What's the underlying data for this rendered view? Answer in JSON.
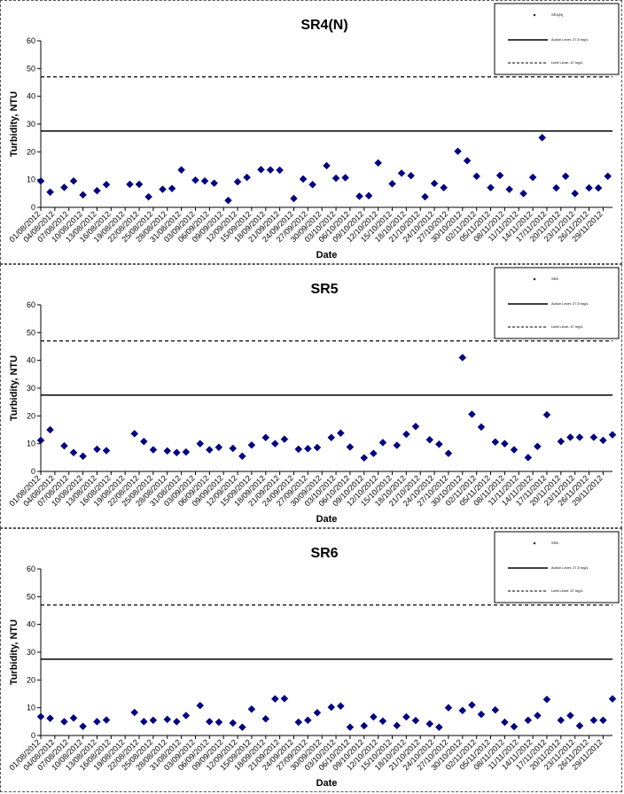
{
  "colors": {
    "marker": "#000080",
    "line": "#000000",
    "border": "#555555"
  },
  "chart_data": [
    {
      "type": "scatter",
      "title": "SR4(N)",
      "xlabel": "Date",
      "ylabel": "Turbidity, NTU",
      "ylim": [
        0,
        60
      ],
      "yticks": [
        0,
        10,
        20,
        30,
        40,
        50,
        60
      ],
      "xlim": [
        "01/08/2012",
        "01/12/2012"
      ],
      "xticks": [
        "01/08/2012",
        "04/08/2012",
        "07/08/2012",
        "10/08/2012",
        "13/08/2012",
        "16/08/2012",
        "19/08/2012",
        "22/08/2012",
        "25/08/2012",
        "28/08/2012",
        "31/08/2012",
        "03/09/2012",
        "06/09/2012",
        "09/09/2012",
        "12/09/2012",
        "15/09/2012",
        "18/09/2012",
        "21/09/2012",
        "24/09/2012",
        "27/09/2012",
        "30/09/2012",
        "03/10/2012",
        "06/10/2012",
        "09/10/2012",
        "12/10/2012",
        "15/10/2012",
        "18/10/2012",
        "21/10/2012",
        "24/10/2012",
        "27/10/2012",
        "30/10/2012",
        "02/11/2012",
        "05/11/2012",
        "08/11/2012",
        "11/11/2012",
        "14/11/2012",
        "17/11/2012",
        "20/11/2012",
        "23/11/2012",
        "26/11/2012",
        "29/11/2012"
      ],
      "legend": {
        "placement": "top-right",
        "entries": [
          "SR4(N)",
          "Action Level: 27.5 mg/L",
          "Limit Level: 47 mg/L"
        ]
      },
      "action_level": 27.5,
      "limit_level": 47,
      "series": [
        {
          "name": "SR4(N)",
          "points": [
            [
              "01/08/2012",
              9.5
            ],
            [
              "03/08/2012",
              5.5
            ],
            [
              "06/08/2012",
              7.2
            ],
            [
              "08/08/2012",
              9.5
            ],
            [
              "10/08/2012",
              4.5
            ],
            [
              "13/08/2012",
              6.0
            ],
            [
              "15/08/2012",
              8.2
            ],
            [
              "20/08/2012",
              8.3
            ],
            [
              "22/08/2012",
              8.3
            ],
            [
              "24/08/2012",
              3.8
            ],
            [
              "27/08/2012",
              6.5
            ],
            [
              "29/08/2012",
              6.8
            ],
            [
              "31/08/2012",
              13.5
            ],
            [
              "03/09/2012",
              9.8
            ],
            [
              "05/09/2012",
              9.5
            ],
            [
              "07/09/2012",
              8.7
            ],
            [
              "10/09/2012",
              2.5
            ],
            [
              "12/09/2012",
              9.2
            ],
            [
              "14/09/2012",
              10.8
            ],
            [
              "17/09/2012",
              13.6
            ],
            [
              "19/09/2012",
              13.5
            ],
            [
              "21/09/2012",
              13.4
            ],
            [
              "24/09/2012",
              3.2
            ],
            [
              "26/09/2012",
              10.2
            ],
            [
              "28/09/2012",
              8.2
            ],
            [
              "01/10/2012",
              15.0
            ],
            [
              "03/10/2012",
              10.5
            ],
            [
              "05/10/2012",
              10.7
            ],
            [
              "08/10/2012",
              4.0
            ],
            [
              "10/10/2012",
              4.2
            ],
            [
              "12/10/2012",
              16.0
            ],
            [
              "15/10/2012",
              8.5
            ],
            [
              "17/10/2012",
              12.3
            ],
            [
              "19/10/2012",
              11.4
            ],
            [
              "22/10/2012",
              3.8
            ],
            [
              "24/10/2012",
              8.6
            ],
            [
              "26/10/2012",
              7.1
            ],
            [
              "29/10/2012",
              20.2
            ],
            [
              "31/10/2012",
              16.8
            ],
            [
              "02/11/2012",
              11.2
            ],
            [
              "05/11/2012",
              7.1
            ],
            [
              "07/11/2012",
              11.5
            ],
            [
              "09/11/2012",
              6.5
            ],
            [
              "12/11/2012",
              5.0
            ],
            [
              "14/11/2012",
              10.8
            ],
            [
              "16/11/2012",
              25.1
            ],
            [
              "19/11/2012",
              7.0
            ],
            [
              "21/11/2012",
              11.2
            ],
            [
              "23/11/2012",
              5.0
            ],
            [
              "26/11/2012",
              7.0
            ],
            [
              "28/11/2012",
              7.0
            ],
            [
              "30/11/2012",
              11.2
            ]
          ]
        }
      ]
    },
    {
      "type": "scatter",
      "title": "SR5",
      "xlabel": "Date",
      "ylabel": "Turbidity, NTU",
      "ylim": [
        0,
        60
      ],
      "yticks": [
        0,
        10,
        20,
        30,
        40,
        50,
        60
      ],
      "xlim": [
        "01/08/2012",
        "01/12/2012"
      ],
      "xticks": [
        "01/08/2012",
        "04/08/2012",
        "07/08/2012",
        "10/08/2012",
        "13/08/2012",
        "16/08/2012",
        "19/08/2012",
        "22/08/2012",
        "25/08/2012",
        "28/08/2012",
        "31/08/2012",
        "03/09/2012",
        "06/09/2012",
        "09/09/2012",
        "12/09/2012",
        "15/09/2012",
        "18/09/2012",
        "21/09/2012",
        "24/09/2012",
        "27/09/2012",
        "30/09/2012",
        "03/10/2012",
        "06/10/2012",
        "09/10/2012",
        "12/10/2012",
        "15/10/2012",
        "18/10/2012",
        "21/10/2012",
        "24/10/2012",
        "27/10/2012",
        "30/10/2012",
        "02/11/2012",
        "05/11/2012",
        "08/11/2012",
        "11/11/2012",
        "14/11/2012",
        "17/11/2012",
        "20/11/2012",
        "23/11/2012",
        "26/11/2012",
        "29/11/2012"
      ],
      "legend": {
        "placement": "top-right",
        "entries": [
          "SR5",
          "Action Level: 27.5 mg/L",
          "Limit Level: 47 mg/L"
        ]
      },
      "action_level": 27.5,
      "limit_level": 47,
      "series": [
        {
          "name": "SR5",
          "points": [
            [
              "01/08/2012",
              11.2
            ],
            [
              "03/08/2012",
              15.0
            ],
            [
              "06/08/2012",
              9.2
            ],
            [
              "08/08/2012",
              6.8
            ],
            [
              "10/08/2012",
              5.5
            ],
            [
              "13/08/2012",
              8.0
            ],
            [
              "15/08/2012",
              7.5
            ],
            [
              "21/08/2012",
              13.6
            ],
            [
              "23/08/2012",
              10.8
            ],
            [
              "25/08/2012",
              7.8
            ],
            [
              "28/08/2012",
              7.4
            ],
            [
              "30/08/2012",
              6.8
            ],
            [
              "01/09/2012",
              7.0
            ],
            [
              "04/09/2012",
              10.0
            ],
            [
              "06/09/2012",
              7.8
            ],
            [
              "08/09/2012",
              8.7
            ],
            [
              "11/09/2012",
              8.3
            ],
            [
              "13/09/2012",
              5.5
            ],
            [
              "15/09/2012",
              9.5
            ],
            [
              "18/09/2012",
              12.2
            ],
            [
              "20/09/2012",
              10.0
            ],
            [
              "22/09/2012",
              11.6
            ],
            [
              "25/09/2012",
              8.0
            ],
            [
              "27/09/2012",
              8.2
            ],
            [
              "29/09/2012",
              8.6
            ],
            [
              "02/10/2012",
              12.2
            ],
            [
              "04/10/2012",
              13.8
            ],
            [
              "06/10/2012",
              8.8
            ],
            [
              "09/10/2012",
              4.9
            ],
            [
              "11/10/2012",
              6.5
            ],
            [
              "13/10/2012",
              10.4
            ],
            [
              "16/10/2012",
              9.4
            ],
            [
              "18/10/2012",
              13.4
            ],
            [
              "20/10/2012",
              16.2
            ],
            [
              "23/10/2012",
              11.4
            ],
            [
              "25/10/2012",
              9.8
            ],
            [
              "27/10/2012",
              6.5
            ],
            [
              "30/10/2012",
              41.0
            ],
            [
              "01/11/2012",
              20.6
            ],
            [
              "03/11/2012",
              16.0
            ],
            [
              "06/11/2012",
              10.6
            ],
            [
              "08/11/2012",
              10.0
            ],
            [
              "10/11/2012",
              7.8
            ],
            [
              "13/11/2012",
              5.0
            ],
            [
              "15/11/2012",
              9.0
            ],
            [
              "17/11/2012",
              20.4
            ],
            [
              "20/11/2012",
              10.8
            ],
            [
              "22/11/2012",
              12.3
            ],
            [
              "24/11/2012",
              12.3
            ],
            [
              "27/11/2012",
              12.3
            ],
            [
              "29/11/2012",
              11.2
            ],
            [
              "01/12/2012",
              13.2
            ]
          ]
        }
      ]
    },
    {
      "type": "scatter",
      "title": "SR6",
      "xlabel": "Date",
      "ylabel": "Turbidity, NTU",
      "ylim": [
        0,
        60
      ],
      "yticks": [
        0,
        10,
        20,
        30,
        40,
        50,
        60
      ],
      "xlim": [
        "01/08/2012",
        "01/12/2012"
      ],
      "xticks": [
        "01/08/2012",
        "04/08/2012",
        "07/08/2012",
        "10/08/2012",
        "13/08/2012",
        "16/08/2012",
        "19/08/2012",
        "22/08/2012",
        "25/08/2012",
        "28/08/2012",
        "31/08/2012",
        "03/09/2012",
        "06/09/2012",
        "09/09/2012",
        "12/09/2012",
        "15/09/2012",
        "18/09/2012",
        "21/09/2012",
        "24/09/2012",
        "27/09/2012",
        "30/09/2012",
        "03/10/2012",
        "06/10/2012",
        "09/10/2012",
        "12/10/2012",
        "15/10/2012",
        "18/10/2012",
        "21/10/2012",
        "24/10/2012",
        "27/10/2012",
        "30/10/2012",
        "02/11/2012",
        "05/11/2012",
        "08/11/2012",
        "11/11/2012",
        "14/11/2012",
        "17/11/2012",
        "20/11/2012",
        "23/11/2012",
        "26/11/2012",
        "29/11/2012"
      ],
      "legend": {
        "placement": "top-right",
        "entries": [
          "SR6",
          "Action Level: 27.5 mg/L",
          "Limit Level: 47 mg/L"
        ]
      },
      "action_level": 27.5,
      "limit_level": 47,
      "series": [
        {
          "name": "SR6",
          "points": [
            [
              "01/08/2012",
              6.8
            ],
            [
              "03/08/2012",
              6.2
            ],
            [
              "06/08/2012",
              5.0
            ],
            [
              "08/08/2012",
              6.3
            ],
            [
              "10/08/2012",
              3.3
            ],
            [
              "13/08/2012",
              5.0
            ],
            [
              "15/08/2012",
              5.6
            ],
            [
              "21/08/2012",
              8.3
            ],
            [
              "23/08/2012",
              5.0
            ],
            [
              "25/08/2012",
              5.5
            ],
            [
              "28/08/2012",
              5.8
            ],
            [
              "30/08/2012",
              5.0
            ],
            [
              "01/09/2012",
              7.2
            ],
            [
              "04/09/2012",
              10.8
            ],
            [
              "06/09/2012",
              5.0
            ],
            [
              "08/09/2012",
              4.8
            ],
            [
              "11/09/2012",
              4.5
            ],
            [
              "13/09/2012",
              3.0
            ],
            [
              "15/09/2012",
              9.5
            ],
            [
              "18/09/2012",
              6.0
            ],
            [
              "20/09/2012",
              13.2
            ],
            [
              "22/09/2012",
              13.3
            ],
            [
              "25/09/2012",
              4.8
            ],
            [
              "27/09/2012",
              5.5
            ],
            [
              "29/09/2012",
              8.2
            ],
            [
              "02/10/2012",
              10.2
            ],
            [
              "04/10/2012",
              10.6
            ],
            [
              "06/10/2012",
              3.0
            ],
            [
              "09/10/2012",
              3.5
            ],
            [
              "11/10/2012",
              6.7
            ],
            [
              "13/10/2012",
              5.2
            ],
            [
              "16/10/2012",
              3.6
            ],
            [
              "18/10/2012",
              6.7
            ],
            [
              "20/10/2012",
              5.4
            ],
            [
              "23/10/2012",
              4.2
            ],
            [
              "25/10/2012",
              3.0
            ],
            [
              "27/10/2012",
              10.0
            ],
            [
              "30/10/2012",
              9.0
            ],
            [
              "01/11/2012",
              11.0
            ],
            [
              "03/11/2012",
              7.6
            ],
            [
              "06/11/2012",
              9.2
            ],
            [
              "08/11/2012",
              4.8
            ],
            [
              "10/11/2012",
              3.2
            ],
            [
              "13/11/2012",
              5.5
            ],
            [
              "15/11/2012",
              7.2
            ],
            [
              "17/11/2012",
              13.0
            ],
            [
              "20/11/2012",
              5.5
            ],
            [
              "22/11/2012",
              7.2
            ],
            [
              "24/11/2012",
              3.5
            ],
            [
              "27/11/2012",
              5.5
            ],
            [
              "29/11/2012",
              5.5
            ],
            [
              "01/12/2012",
              13.2
            ]
          ]
        }
      ]
    }
  ]
}
